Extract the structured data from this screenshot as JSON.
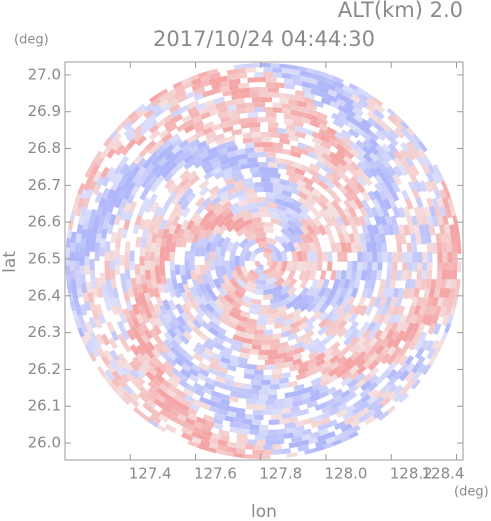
{
  "chart_data": {
    "type": "radar-ppi",
    "title": "2017/10/24 04:44:30",
    "subtitle": "ALT(km) 2.0",
    "x_label": "lon",
    "y_label": "lat",
    "x_unit": "(deg)",
    "y_unit": "(deg)",
    "xlim": [
      127.2,
      128.42
    ],
    "xticks": [
      {
        "value": 127.4,
        "label": "127.4"
      },
      {
        "value": 127.6,
        "label": "127.6"
      },
      {
        "value": 127.8,
        "label": "127.8"
      },
      {
        "value": 128.0,
        "label": "128.0"
      },
      {
        "value": 128.2,
        "label": "128.2"
      },
      {
        "value": 128.4,
        "label": "128.4"
      }
    ],
    "ylim": [
      25.954,
      27.035
    ],
    "yticks": [
      {
        "value": 26.0,
        "label": "26.0"
      },
      {
        "value": 26.1,
        "label": "26.1"
      },
      {
        "value": 26.2,
        "label": "26.2"
      },
      {
        "value": 26.3,
        "label": "26.3"
      },
      {
        "value": 26.4,
        "label": "26.4"
      },
      {
        "value": 26.5,
        "label": "26.5"
      },
      {
        "value": 26.6,
        "label": "26.6"
      },
      {
        "value": 26.7,
        "label": "26.7"
      },
      {
        "value": 26.8,
        "label": "26.8"
      },
      {
        "value": 26.9,
        "label": "26.9"
      },
      {
        "value": 27.0,
        "label": "27.0"
      }
    ]
  }
}
